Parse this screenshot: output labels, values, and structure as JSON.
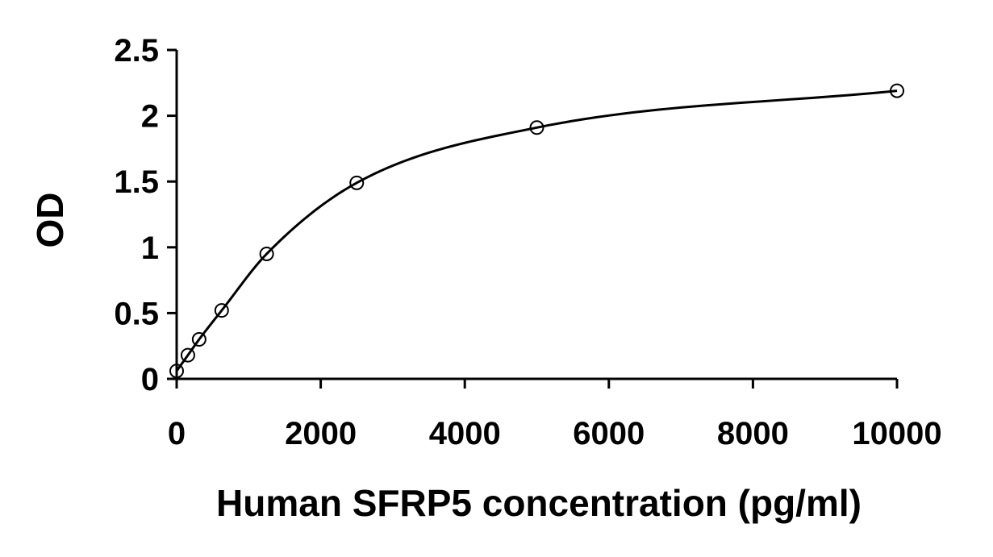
{
  "chart_data": {
    "type": "scatter",
    "title": "",
    "xlabel": "Human SFRP5 concentration (pg/ml)",
    "ylabel": "OD",
    "xlim": [
      0,
      10000
    ],
    "ylim": [
      0,
      2.5
    ],
    "xticks": [
      0,
      2000,
      4000,
      6000,
      8000,
      10000
    ],
    "yticks": [
      0,
      0.5,
      1,
      1.5,
      2,
      2.5
    ],
    "xtick_labels": [
      "0",
      "2000",
      "4000",
      "6000",
      "8000",
      "10000"
    ],
    "ytick_labels": [
      "0",
      "0.5",
      "1",
      "1.5",
      "2",
      "2.5"
    ],
    "grid": false,
    "legend": "none",
    "series": [
      {
        "x": [
          0,
          156,
          312,
          625,
          1250,
          2500,
          5000,
          10000
        ],
        "y": [
          0.06,
          0.18,
          0.3,
          0.52,
          0.95,
          1.49,
          1.91,
          2.19
        ],
        "marker": "open-circle",
        "fit_curve": true
      }
    ]
  }
}
